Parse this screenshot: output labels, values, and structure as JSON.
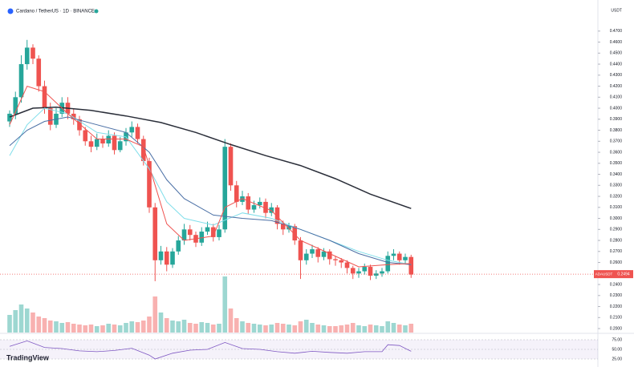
{
  "chart_data": {
    "type": "candlestick",
    "title": "Cardano / TetherUS · 1D · BINANCE",
    "brand": "TradingView",
    "currency": "USDT",
    "symbol": "ADAUSDT",
    "last_price": 0.2494,
    "open": [
      0.388,
      0.395,
      0.41,
      0.44,
      0.455,
      0.445,
      0.42,
      0.4,
      0.385,
      0.395,
      0.405,
      0.395,
      0.39,
      0.38,
      0.37,
      0.365,
      0.372,
      0.368,
      0.375,
      0.362,
      0.37,
      0.378,
      0.383,
      0.372,
      0.352,
      0.31,
      0.262,
      0.27,
      0.258,
      0.27,
      0.28,
      0.29,
      0.285,
      0.278,
      0.288,
      0.292,
      0.283,
      0.29,
      0.365,
      0.33,
      0.315,
      0.32,
      0.308,
      0.312,
      0.315,
      0.305,
      0.31,
      0.295,
      0.29,
      0.293,
      0.28,
      0.262,
      0.268,
      0.272,
      0.265,
      0.27,
      0.263,
      0.262,
      0.26,
      0.255,
      0.25,
      0.252,
      0.256,
      0.248,
      0.25,
      0.252,
      0.266,
      0.268,
      0.262,
      0.265
    ],
    "high": [
      0.398,
      0.415,
      0.448,
      0.462,
      0.458,
      0.448,
      0.425,
      0.405,
      0.4,
      0.41,
      0.41,
      0.4,
      0.393,
      0.383,
      0.375,
      0.377,
      0.375,
      0.38,
      0.378,
      0.374,
      0.382,
      0.388,
      0.386,
      0.375,
      0.355,
      0.314,
      0.275,
      0.274,
      0.273,
      0.284,
      0.295,
      0.294,
      0.288,
      0.292,
      0.297,
      0.295,
      0.294,
      0.372,
      0.368,
      0.334,
      0.325,
      0.323,
      0.316,
      0.319,
      0.318,
      0.314,
      0.312,
      0.298,
      0.296,
      0.295,
      0.283,
      0.272,
      0.276,
      0.274,
      0.273,
      0.272,
      0.266,
      0.264,
      0.262,
      0.257,
      0.255,
      0.259,
      0.258,
      0.253,
      0.255,
      0.27,
      0.272,
      0.27,
      0.268,
      0.267
    ],
    "low": [
      0.383,
      0.39,
      0.405,
      0.435,
      0.44,
      0.415,
      0.395,
      0.38,
      0.382,
      0.392,
      0.39,
      0.385,
      0.375,
      0.366,
      0.36,
      0.362,
      0.364,
      0.365,
      0.358,
      0.36,
      0.366,
      0.374,
      0.368,
      0.348,
      0.305,
      0.243,
      0.258,
      0.252,
      0.255,
      0.267,
      0.276,
      0.28,
      0.274,
      0.275,
      0.285,
      0.279,
      0.28,
      0.287,
      0.325,
      0.31,
      0.312,
      0.304,
      0.305,
      0.309,
      0.3,
      0.302,
      0.29,
      0.285,
      0.287,
      0.276,
      0.245,
      0.258,
      0.264,
      0.26,
      0.262,
      0.258,
      0.257,
      0.255,
      0.25,
      0.245,
      0.246,
      0.249,
      0.244,
      0.245,
      0.247,
      0.25,
      0.262,
      0.258,
      0.259,
      0.246
    ],
    "close": [
      0.395,
      0.41,
      0.44,
      0.455,
      0.445,
      0.42,
      0.4,
      0.385,
      0.395,
      0.405,
      0.395,
      0.39,
      0.38,
      0.37,
      0.365,
      0.372,
      0.368,
      0.375,
      0.362,
      0.37,
      0.378,
      0.383,
      0.372,
      0.352,
      0.31,
      0.262,
      0.27,
      0.258,
      0.27,
      0.28,
      0.29,
      0.285,
      0.278,
      0.288,
      0.292,
      0.283,
      0.29,
      0.365,
      0.33,
      0.315,
      0.32,
      0.308,
      0.312,
      0.315,
      0.305,
      0.31,
      0.295,
      0.29,
      0.293,
      0.28,
      0.262,
      0.268,
      0.272,
      0.265,
      0.27,
      0.263,
      0.262,
      0.26,
      0.255,
      0.25,
      0.252,
      0.256,
      0.248,
      0.25,
      0.252,
      0.266,
      0.268,
      0.262,
      0.265,
      0.249
    ],
    "volume": [
      22,
      28,
      35,
      30,
      25,
      20,
      18,
      15,
      14,
      12,
      13,
      11,
      10,
      9,
      10,
      8,
      9,
      11,
      10,
      9,
      12,
      14,
      13,
      15,
      20,
      45,
      25,
      18,
      15,
      14,
      16,
      12,
      11,
      13,
      12,
      10,
      11,
      70,
      30,
      18,
      14,
      12,
      11,
      10,
      9,
      10,
      12,
      11,
      10,
      9,
      14,
      16,
      12,
      10,
      9,
      8,
      8,
      9,
      10,
      12,
      9,
      8,
      10,
      9,
      8,
      14,
      12,
      10,
      9,
      11
    ],
    "up_color": "#26a69a",
    "down_color": "#ef5350",
    "ylim": [
      0.1964,
      0.4924
    ],
    "yticks": [
      {
        "value": 0.2,
        "label": "0.2000"
      },
      {
        "value": 0.21,
        "label": "0.2100"
      },
      {
        "value": 0.22,
        "label": "0.2200"
      },
      {
        "value": 0.23,
        "label": "0.2300"
      },
      {
        "value": 0.24,
        "label": "0.2400"
      },
      {
        "value": 0.26,
        "label": "0.2600"
      },
      {
        "value": 0.27,
        "label": "0.2700"
      },
      {
        "value": 0.28,
        "label": "0.2800"
      },
      {
        "value": 0.29,
        "label": "0.2900"
      },
      {
        "value": 0.3,
        "label": "0.3000"
      },
      {
        "value": 0.31,
        "label": "0.3100"
      },
      {
        "value": 0.32,
        "label": "0.3200"
      },
      {
        "value": 0.33,
        "label": "0.3300"
      },
      {
        "value": 0.34,
        "label": "0.3400"
      },
      {
        "value": 0.35,
        "label": "0.3500"
      },
      {
        "value": 0.36,
        "label": "0.3600"
      },
      {
        "value": 0.37,
        "label": "0.3700"
      },
      {
        "value": 0.38,
        "label": "0.3800"
      },
      {
        "value": 0.39,
        "label": "0.3900"
      },
      {
        "value": 0.4,
        "label": "0.4000"
      },
      {
        "value": 0.41,
        "label": "0.4100"
      },
      {
        "value": 0.42,
        "label": "0.4200"
      },
      {
        "value": 0.43,
        "label": "0.4300"
      },
      {
        "value": 0.44,
        "label": "0.4400"
      },
      {
        "value": 0.45,
        "label": "0.4500"
      },
      {
        "value": 0.46,
        "label": "0.4600"
      },
      {
        "value": 0.47,
        "label": "0.4700"
      }
    ],
    "indicators": [
      {
        "color": "#2a2e39",
        "x": [
          0,
          4,
          8,
          14,
          20,
          26,
          32,
          38,
          44,
          50,
          56,
          62,
          69
        ],
        "values": [
          0.392,
          0.4,
          0.401,
          0.398,
          0.393,
          0.387,
          0.378,
          0.367,
          0.357,
          0.348,
          0.336,
          0.322,
          0.309
        ]
      },
      {
        "color": "#80deea",
        "x": [
          0,
          3,
          6,
          10,
          15,
          20,
          24,
          27,
          30,
          35,
          40,
          45,
          50,
          55,
          60,
          65,
          69
        ],
        "values": [
          0.357,
          0.385,
          0.4,
          0.395,
          0.378,
          0.374,
          0.345,
          0.315,
          0.3,
          0.294,
          0.305,
          0.3,
          0.29,
          0.28,
          0.27,
          0.262,
          0.258
        ]
      },
      {
        "color": "#4a6fa5",
        "x": [
          0,
          3,
          6,
          10,
          15,
          20,
          24,
          27,
          30,
          35,
          40,
          45,
          50,
          55,
          60,
          65,
          69
        ],
        "values": [
          0.366,
          0.38,
          0.388,
          0.392,
          0.385,
          0.378,
          0.36,
          0.335,
          0.318,
          0.303,
          0.3,
          0.298,
          0.29,
          0.28,
          0.268,
          0.26,
          0.258
        ]
      },
      {
        "color": "#ef5350",
        "x": [
          0,
          3,
          6,
          10,
          15,
          20,
          23,
          25,
          27,
          30,
          35,
          37,
          40,
          45,
          50,
          55,
          60,
          65,
          69
        ],
        "values": [
          0.385,
          0.42,
          0.415,
          0.395,
          0.372,
          0.372,
          0.365,
          0.33,
          0.295,
          0.28,
          0.284,
          0.31,
          0.318,
          0.307,
          0.28,
          0.268,
          0.256,
          0.258,
          0.259
        ]
      }
    ],
    "rsi": {
      "color": "#7e57c2",
      "ylim": [
        12.5,
        87.5
      ],
      "yticks": [
        {
          "value": 25,
          "label": "25.00"
        },
        {
          "value": 50,
          "label": "50.00"
        },
        {
          "value": 75,
          "label": "75.00"
        }
      ],
      "x": [
        0,
        3,
        6,
        9,
        12,
        15,
        18,
        21,
        24,
        25,
        28,
        31,
        34,
        37,
        40,
        43,
        46,
        49,
        52,
        55,
        58,
        61,
        64,
        65,
        67,
        69
      ],
      "values": [
        58,
        72,
        55,
        52,
        46,
        44,
        47,
        53,
        35,
        25,
        40,
        48,
        50,
        68,
        52,
        50,
        44,
        40,
        45,
        42,
        40,
        44,
        44,
        62,
        60,
        45
      ]
    }
  }
}
